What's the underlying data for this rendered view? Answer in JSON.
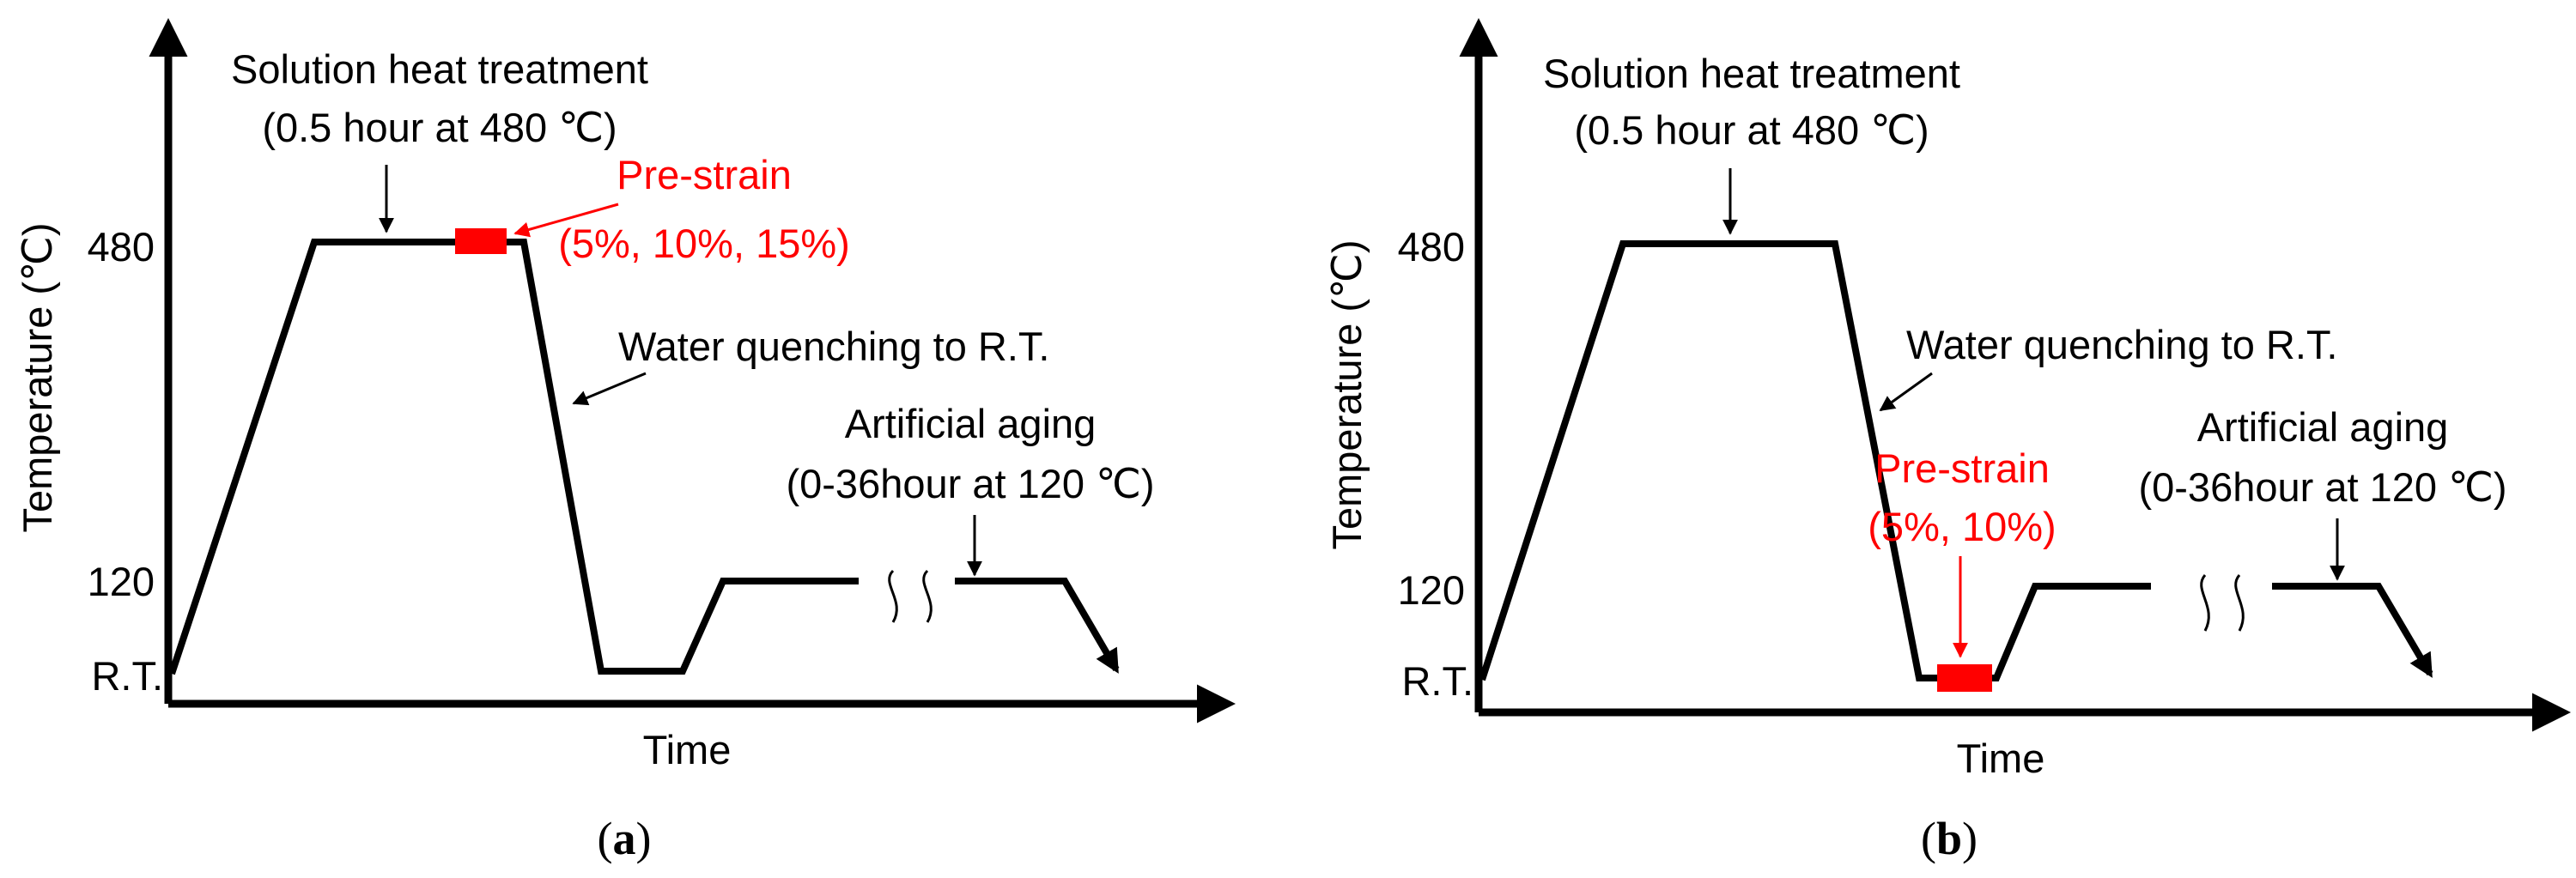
{
  "panels": [
    {
      "id": "a",
      "caption_open": "(",
      "caption_letter": "a",
      "caption_close": ")",
      "y_axis_label": "Temperature (℃)",
      "x_axis_label": "Time",
      "y_ticks": [
        "480",
        "120",
        "R.T."
      ],
      "solution_title": "Solution heat treatment",
      "solution_detail": "(0.5 hour at 480 ℃)",
      "prestrain_title": "Pre-strain",
      "prestrain_detail": "(5%, 10%, 15%)",
      "quench_label": "Water quenching to R.T.",
      "aging_title": "Artificial aging",
      "aging_detail": "(0-36hour at 120 ℃)"
    },
    {
      "id": "b",
      "caption_open": "(",
      "caption_letter": "b",
      "caption_close": ")",
      "y_axis_label": "Temperature (℃)",
      "x_axis_label": "Time",
      "y_ticks": [
        "480",
        "120",
        "R.T."
      ],
      "solution_title": "Solution heat treatment",
      "solution_detail": "(0.5 hour at 480 ℃)",
      "prestrain_title": "Pre-strain",
      "prestrain_detail": "(5%, 10%)",
      "quench_label": "Water quenching to R.T.",
      "aging_title": "Artificial aging",
      "aging_detail": "(0-36hour at 120 ℃)"
    }
  ],
  "colors": {
    "line": "#000000",
    "prestrain": "#ff0000"
  }
}
